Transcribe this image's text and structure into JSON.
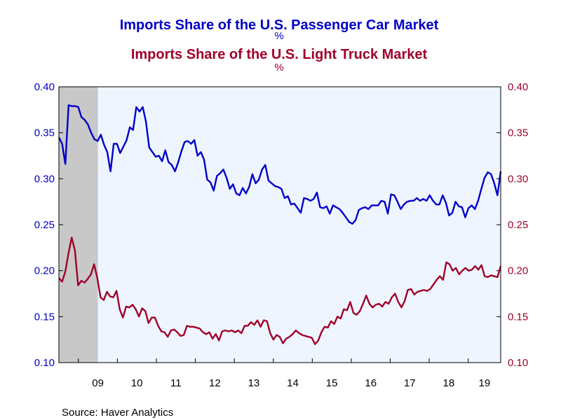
{
  "chart_data": {
    "type": "line",
    "title": "Imports Share of the U.S. Passenger Car Market",
    "title_unit": "%",
    "subtitle": "Imports Share of the U.S. Light Truck Market",
    "subtitle_unit": "%",
    "source": "Source:  Haver Analytics",
    "x_start": "2008-07",
    "x_end": "2019-11",
    "xticks": [
      {
        "label": "09",
        "year": 2009
      },
      {
        "label": "10",
        "year": 2010
      },
      {
        "label": "11",
        "year": 2011
      },
      {
        "label": "12",
        "year": 2012
      },
      {
        "label": "13",
        "year": 2013
      },
      {
        "label": "14",
        "year": 2014
      },
      {
        "label": "15",
        "year": 2015
      },
      {
        "label": "16",
        "year": 2016
      },
      {
        "label": "17",
        "year": 2017
      },
      {
        "label": "18",
        "year": 2018
      },
      {
        "label": "19",
        "year": 2019
      }
    ],
    "yleft": {
      "min": 0.1,
      "max": 0.4,
      "ticks": [
        "0.10",
        "0.15",
        "0.20",
        "0.25",
        "0.30",
        "0.35",
        "0.40"
      ]
    },
    "yright": {
      "min": 0.1,
      "max": 0.4,
      "ticks": [
        "0.10",
        "0.15",
        "0.20",
        "0.25",
        "0.30",
        "0.35",
        "0.40"
      ]
    },
    "recession": {
      "start": "2008-07",
      "end": "2009-06",
      "color": "#c8c8c8"
    },
    "colors": {
      "plot_bg": "#eef5ff",
      "car": "#0000c8",
      "truck": "#a0002a",
      "frame": "#000000"
    },
    "series": [
      {
        "name": "Imports Share of the U.S. Passenger Car Market",
        "axis": "left",
        "values": [
          0.345,
          0.338,
          0.316,
          0.38,
          0.379,
          0.379,
          0.378,
          0.367,
          0.364,
          0.359,
          0.35,
          0.343,
          0.341,
          0.348,
          0.337,
          0.329,
          0.308,
          0.338,
          0.338,
          0.328,
          0.335,
          0.342,
          0.356,
          0.353,
          0.378,
          0.373,
          0.378,
          0.362,
          0.334,
          0.329,
          0.324,
          0.325,
          0.319,
          0.331,
          0.318,
          0.315,
          0.308,
          0.318,
          0.33,
          0.34,
          0.341,
          0.338,
          0.342,
          0.325,
          0.329,
          0.321,
          0.299,
          0.296,
          0.287,
          0.303,
          0.306,
          0.31,
          0.301,
          0.289,
          0.294,
          0.284,
          0.282,
          0.29,
          0.284,
          0.291,
          0.305,
          0.295,
          0.299,
          0.31,
          0.315,
          0.298,
          0.295,
          0.292,
          0.291,
          0.289,
          0.279,
          0.281,
          0.272,
          0.273,
          0.268,
          0.263,
          0.279,
          0.278,
          0.276,
          0.278,
          0.285,
          0.269,
          0.268,
          0.27,
          0.262,
          0.271,
          0.269,
          0.267,
          0.263,
          0.258,
          0.253,
          0.251,
          0.255,
          0.266,
          0.268,
          0.269,
          0.267,
          0.271,
          0.271,
          0.271,
          0.276,
          0.275,
          0.262,
          0.283,
          0.282,
          0.275,
          0.267,
          0.272,
          0.275,
          0.276,
          0.276,
          0.279,
          0.276,
          0.278,
          0.276,
          0.282,
          0.276,
          0.272,
          0.272,
          0.282,
          0.274,
          0.26,
          0.263,
          0.275,
          0.27,
          0.269,
          0.258,
          0.268,
          0.271,
          0.267,
          0.276,
          0.289,
          0.301,
          0.307,
          0.305,
          0.295,
          0.282,
          0.308
        ]
      },
      {
        "name": "Imports Share of the U.S. Light Truck Market",
        "axis": "right",
        "values": [
          0.192,
          0.188,
          0.199,
          0.219,
          0.236,
          0.222,
          0.184,
          0.189,
          0.187,
          0.191,
          0.196,
          0.207,
          0.192,
          0.171,
          0.168,
          0.177,
          0.172,
          0.171,
          0.178,
          0.158,
          0.149,
          0.161,
          0.16,
          0.163,
          0.158,
          0.15,
          0.159,
          0.156,
          0.143,
          0.149,
          0.149,
          0.14,
          0.134,
          0.133,
          0.128,
          0.135,
          0.136,
          0.133,
          0.129,
          0.13,
          0.14,
          0.139,
          0.139,
          0.138,
          0.137,
          0.133,
          0.131,
          0.133,
          0.126,
          0.131,
          0.124,
          0.134,
          0.135,
          0.134,
          0.135,
          0.133,
          0.135,
          0.132,
          0.14,
          0.14,
          0.144,
          0.141,
          0.146,
          0.139,
          0.146,
          0.145,
          0.132,
          0.125,
          0.13,
          0.128,
          0.121,
          0.126,
          0.128,
          0.131,
          0.135,
          0.132,
          0.13,
          0.129,
          0.128,
          0.127,
          0.12,
          0.124,
          0.133,
          0.139,
          0.138,
          0.145,
          0.142,
          0.15,
          0.148,
          0.158,
          0.157,
          0.166,
          0.154,
          0.152,
          0.156,
          0.164,
          0.173,
          0.164,
          0.16,
          0.163,
          0.164,
          0.161,
          0.166,
          0.164,
          0.171,
          0.175,
          0.166,
          0.16,
          0.167,
          0.179,
          0.18,
          0.174,
          0.177,
          0.178,
          0.179,
          0.178,
          0.18,
          0.185,
          0.19,
          0.194,
          0.19,
          0.209,
          0.207,
          0.2,
          0.203,
          0.196,
          0.2,
          0.203,
          0.2,
          0.201,
          0.205,
          0.201,
          0.206,
          0.194,
          0.193,
          0.195,
          0.194,
          0.193,
          0.205
        ]
      }
    ]
  }
}
